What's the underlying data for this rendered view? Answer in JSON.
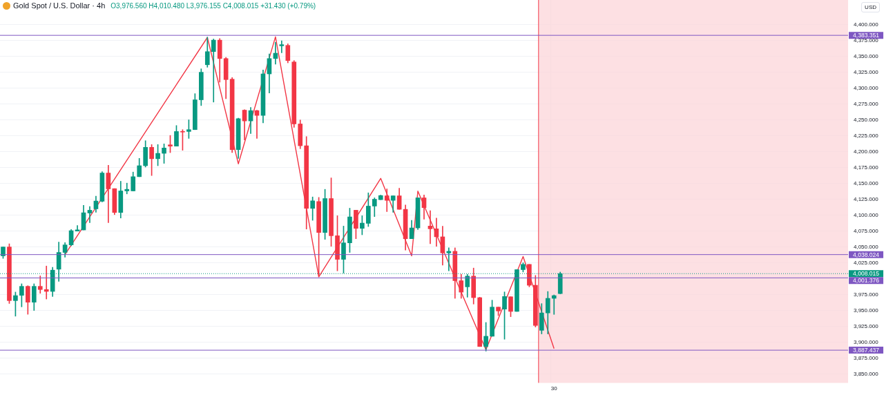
{
  "chart_data": {
    "type": "candlestick",
    "title": "Gold Spot / U.S. Dollar · 4h",
    "subtitle": "O3,976.560 H4,010.480 L3,976.155 C4,008.015 +31.430 (+0.79%)",
    "ylabel": "USD",
    "categories": [
      null,
      null,
      null,
      null,
      null,
      null,
      null,
      null,
      null,
      null,
      null,
      null,
      null,
      null,
      null,
      null,
      null,
      null,
      null,
      null,
      null,
      null,
      null,
      null,
      null,
      null,
      null,
      null,
      null,
      null,
      null,
      null,
      null,
      null,
      null,
      null,
      null,
      null,
      null,
      null,
      null,
      null,
      null,
      null,
      null,
      null,
      null,
      null,
      null,
      null,
      null,
      null,
      null,
      null,
      null,
      null,
      null,
      null,
      null,
      null,
      null,
      null,
      null,
      null,
      null,
      null,
      null,
      null,
      null,
      null,
      null,
      null,
      null,
      null,
      null,
      null,
      null,
      null,
      null,
      null,
      null,
      null,
      null,
      null,
      null,
      null,
      null,
      null,
      null,
      "30",
      null,
      null,
      null,
      null,
      null,
      null,
      null,
      null,
      null,
      null,
      null,
      null,
      null,
      null,
      null,
      null,
      null,
      null,
      null,
      null,
      null,
      null,
      null,
      null,
      null,
      null,
      null,
      null,
      null,
      null,
      null,
      null,
      null,
      null,
      null,
      null,
      null,
      null,
      null,
      null,
      null,
      null,
      null,
      null,
      null,
      null,
      null
    ],
    "ohlc": [
      [
        4036,
        4050,
        4032,
        4050
      ],
      [
        4050,
        4055,
        3961,
        3965.5
      ],
      [
        3965.5,
        3979,
        3941,
        3973.4
      ],
      [
        3973.8,
        3992,
        3955.7,
        3988
      ],
      [
        3988,
        3989,
        3944,
        3963
      ],
      [
        3963,
        3992,
        3950,
        3988
      ],
      [
        3988,
        4004.5,
        3977,
        3983
      ],
      [
        3983,
        4020,
        3968,
        3980
      ],
      [
        3980,
        4018,
        3972,
        4013.5
      ],
      [
        4015,
        4057.7,
        3996,
        4041.4
      ],
      [
        4041.4,
        4057,
        4034,
        4053.3
      ],
      [
        4053.3,
        4077.5,
        4052,
        4075.7
      ],
      [
        4075,
        4083.7,
        4075,
        4077
      ],
      [
        4076.8,
        4115.5,
        4076.8,
        4103.9
      ],
      [
        4103.5,
        4113.7,
        4088.4,
        4107.9
      ],
      [
        4110,
        4130,
        4104.6,
        4122.4
      ],
      [
        4122,
        4168.6,
        4120.9,
        4166.5
      ],
      [
        4166.5,
        4178.7,
        4088.4,
        4141.5
      ],
      [
        4141.9,
        4141.9,
        4101,
        4104.3
      ],
      [
        4104.3,
        4153.5,
        4095.6,
        4138.3
      ],
      [
        4138.3,
        4150.6,
        4133.6,
        4140.8
      ],
      [
        4138.3,
        4168,
        4138.3,
        4160.7
      ],
      [
        4160.7,
        4189.6,
        4160.7,
        4178
      ],
      [
        4178,
        4217.4,
        4175.9,
        4207
      ],
      [
        4207,
        4211.3,
        4162.5,
        4189
      ],
      [
        4189,
        4211.3,
        4178,
        4197.5
      ],
      [
        4197.5,
        4212.4,
        4181.7,
        4205.9
      ],
      [
        4210.9,
        4225.7,
        4198.6,
        4208.8
      ],
      [
        4208.8,
        4241.3,
        4208.8,
        4231.9
      ],
      [
        4232,
        4234.8,
        4202.3,
        4231
      ],
      [
        4231.9,
        4250.3,
        4221,
        4234.8
      ],
      [
        4234.8,
        4291.5,
        4234.8,
        4281.8
      ],
      [
        4281.8,
        4330.6,
        4272.7,
        4325.2
      ],
      [
        4337,
        4380.5,
        4333.1,
        4357.7
      ],
      [
        4357.7,
        4377.6,
        4278.2,
        4375.8
      ],
      [
        4375.8,
        4378.3,
        4309.6,
        4346.8
      ],
      [
        4346.8,
        4348.7,
        4283.6,
        4313.6
      ],
      [
        4314.3,
        4316.8,
        4198.6,
        4203.3
      ],
      [
        4203.3,
        4252.9,
        4189.6,
        4252.1
      ],
      [
        4265.5,
        4266.2,
        4218.5,
        4248.5
      ],
      [
        4248.5,
        4269.9,
        4228.6,
        4264.8
      ],
      [
        4264.8,
        4265.5,
        4221,
        4257.2
      ],
      [
        4257.2,
        4328.8,
        4245.6,
        4322.6
      ],
      [
        4322.6,
        4354,
        4292.6,
        4346.8
      ],
      [
        4346.8,
        4372.2,
        4337.8,
        4355.2
      ],
      [
        4366.8,
        4374.7,
        4355.9,
        4368.7
      ],
      [
        4367.5,
        4370,
        4340,
        4343.6
      ],
      [
        4341.4,
        4343.6,
        4238.4,
        4243.8
      ],
      [
        4243.8,
        4250,
        4204.8,
        4209.4
      ],
      [
        4209.4,
        4223.9,
        4078.2,
        4110.8
      ],
      [
        4110.8,
        4128.8,
        4092,
        4122.7
      ],
      [
        4121.6,
        4128.1,
        4003.5,
        4072.8
      ],
      [
        4072.8,
        4140.8,
        4062,
        4126.3
      ],
      [
        4126.3,
        4158.8,
        4051.1,
        4067.7
      ],
      [
        4067.7,
        4099.2,
        4012.4,
        4030.5
      ],
      [
        4030.5,
        4082.9,
        4008.8,
        4056.5
      ],
      [
        4056.5,
        4111.1,
        4041.4,
        4097.4
      ],
      [
        4107.9,
        4107.9,
        4063,
        4079.3
      ],
      [
        4079.3,
        4099.2,
        4069.2,
        4087.6
      ],
      [
        4087.2,
        4135.3,
        4082.2,
        4114.4
      ],
      [
        4114.4,
        4127.4,
        4097.8,
        4125.2
      ],
      [
        4124.5,
        4131.7,
        4124.5,
        4131
      ],
      [
        4130.6,
        4141.5,
        4105.7,
        4123.4
      ],
      [
        4123.4,
        4130.6,
        4104.6,
        4130.6
      ],
      [
        4130.6,
        4142.6,
        4109.3,
        4109.3
      ],
      [
        4109.3,
        4116.2,
        4045,
        4063
      ],
      [
        4063,
        4092,
        4063,
        4080
      ],
      [
        4080,
        4127.4,
        4077.5,
        4127.4
      ],
      [
        4127.4,
        4131.8,
        4093.8,
        4111.9
      ],
      [
        4083,
        4107.2,
        4055.1,
        4078.6
      ],
      [
        4078.6,
        4095.6,
        4051.1,
        4066
      ],
      [
        4066,
        4082.6,
        4021.5,
        4040.6
      ],
      [
        4040.6,
        4048.6,
        4012.5,
        4043.2
      ],
      [
        4043.2,
        4048.6,
        3969.1,
        3996.9
      ],
      [
        3996.9,
        4007,
        3969.1,
        3978.8
      ],
      [
        3987.2,
        4007,
        3970.9,
        4004.1
      ],
      [
        4004.1,
        4016.8,
        3960.1,
        3970.2
      ],
      [
        3970.2,
        3970.9,
        3893.2,
        3893.2
      ],
      [
        3893.2,
        3931.1,
        3886,
        3909.4
      ],
      [
        3909.4,
        3966.2,
        3909.4,
        3955.3
      ],
      [
        3955.3,
        3955.3,
        3942,
        3949.2
      ],
      [
        3952.1,
        3979.2,
        3904.7,
        3972
      ],
      [
        3971.6,
        3971.6,
        3940.2,
        3948.5
      ],
      [
        3948.5,
        4014.3,
        3948.5,
        4014.3
      ],
      [
        4014.3,
        4025.1,
        4010.6,
        4022.6
      ],
      [
        4022.6,
        4022.6,
        3987.2,
        3989.7
      ],
      [
        3989.7,
        4005.2,
        3923.9,
        3926.4
      ],
      [
        3918.7,
        3960.8,
        3913.1,
        3946.1
      ],
      [
        3946.1,
        3979.9,
        3913.1,
        3969.1
      ],
      [
        3969.1,
        3974.5,
        3943.8,
        3973.4
      ],
      [
        3976.56,
        4010.48,
        3976.155,
        4008.015
      ],
      null,
      null,
      null,
      null,
      null,
      null,
      null,
      null,
      null,
      null,
      null,
      null,
      null,
      null,
      null,
      null,
      null,
      null,
      null,
      null,
      null,
      null,
      null,
      null,
      null,
      null,
      null,
      null,
      null,
      null,
      null,
      null,
      null,
      null,
      null,
      null,
      null,
      null,
      null,
      null,
      null,
      null,
      null,
      null,
      null,
      null
    ],
    "series": [
      {
        "type": "line",
        "color": "#f23645",
        "values": [
          null,
          null,
          null,
          null,
          null,
          null,
          null,
          null,
          null,
          null,
          4038,
          null,
          null,
          null,
          null,
          null,
          null,
          null,
          null,
          null,
          null,
          null,
          null,
          null,
          null,
          null,
          null,
          null,
          null,
          null,
          null,
          null,
          null,
          4380,
          null,
          null,
          null,
          null,
          4181,
          null,
          null,
          null,
          null,
          null,
          4381,
          null,
          null,
          null,
          null,
          null,
          null,
          4003,
          null,
          null,
          null,
          null,
          null,
          null,
          null,
          null,
          null,
          4158,
          null,
          null,
          null,
          null,
          4036,
          4138,
          null,
          null,
          null,
          null,
          null,
          null,
          null,
          null,
          null,
          null,
          3888,
          null,
          null,
          null,
          null,
          null,
          4035,
          null,
          null,
          null,
          null,
          3890,
          null,
          null,
          null,
          null,
          null,
          null,
          null,
          null,
          null,
          null,
          null,
          null,
          null,
          null,
          null,
          null,
          null,
          null,
          null,
          null,
          null,
          null,
          null,
          null,
          null,
          null,
          null,
          null,
          null,
          null,
          null,
          null,
          null,
          null,
          null,
          null,
          null,
          null,
          null,
          null,
          null,
          null,
          null,
          null,
          null,
          null,
          null
        ]
      }
    ],
    "ylim": [
      3836,
      4439
    ],
    "yticks": [
      {
        "value": 3850,
        "label": "3,850.000"
      },
      {
        "value": 3875,
        "label": "3,875.000"
      },
      {
        "value": 3900,
        "label": "3,900.000"
      },
      {
        "value": 3925,
        "label": "3,925.000"
      },
      {
        "value": 3950,
        "label": "3,950.000"
      },
      {
        "value": 3975,
        "label": "3,975.000"
      },
      {
        "value": 4000,
        "label": null
      },
      {
        "value": 4025,
        "label": "4,025.000"
      },
      {
        "value": 4050,
        "label": "4,050.000"
      },
      {
        "value": 4075,
        "label": "4,075.000"
      },
      {
        "value": 4100,
        "label": "4,100.000"
      },
      {
        "value": 4125,
        "label": "4,125.000"
      },
      {
        "value": 4150,
        "label": "4,150.000"
      },
      {
        "value": 4175,
        "label": "4,175.000"
      },
      {
        "value": 4200,
        "label": "4,200.000"
      },
      {
        "value": 4225,
        "label": "4,225.000"
      },
      {
        "value": 4250,
        "label": "4,250.000"
      },
      {
        "value": 4275,
        "label": "4,275.000"
      },
      {
        "value": 4300,
        "label": "4,300.000"
      },
      {
        "value": 4325,
        "label": "4,325.000"
      },
      {
        "value": 4350,
        "label": "4,350.000"
      },
      {
        "value": 4375,
        "label": "4,375.000"
      },
      {
        "value": 4400,
        "label": "4,400.000"
      }
    ],
    "grid": true,
    "ref_lines": [
      {
        "axis": "y",
        "value": 4383.351,
        "label": "4,383.351",
        "color": "#7e57c2"
      },
      {
        "axis": "y",
        "value": 4038.024,
        "label": "4,038.024",
        "color": "#7e57c2"
      },
      {
        "axis": "y",
        "value": 4008.015,
        "label": "4,008.015",
        "color": "#089981",
        "line_style": "dotted"
      },
      {
        "axis": "y",
        "value": 4001.376,
        "label": "4,001.376",
        "color": "#7e57c2"
      },
      {
        "axis": "y",
        "value": 3887.437,
        "label": "3,887.437",
        "color": "#7e57c2"
      }
    ]
  }
}
